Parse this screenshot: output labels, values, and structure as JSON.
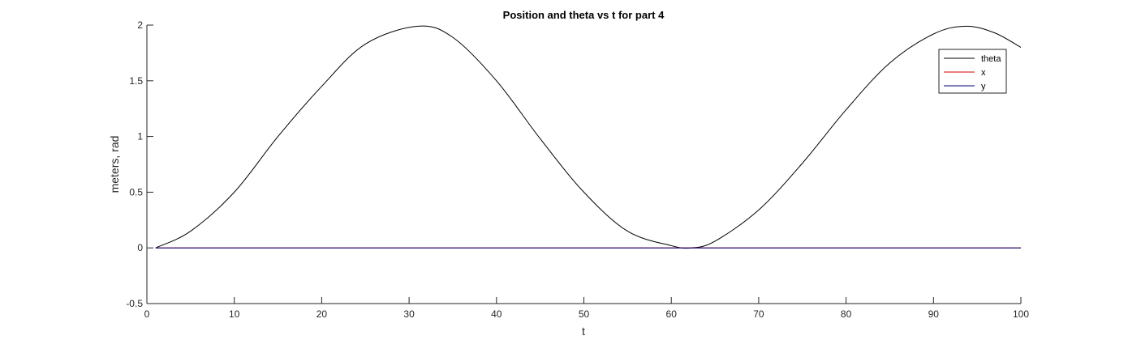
{
  "chart_data": {
    "type": "line",
    "title": "Position and theta vs t for part 4",
    "xlabel": "t",
    "ylabel": "meters, rad",
    "xlim": [
      0,
      100
    ],
    "ylim": [
      -0.5,
      2
    ],
    "xticks": [
      0,
      10,
      20,
      30,
      40,
      50,
      60,
      70,
      80,
      90,
      100
    ],
    "yticks": [
      -0.5,
      0,
      0.5,
      1,
      1.5,
      2
    ],
    "xtick_labels": [
      "0",
      "10",
      "20",
      "30",
      "40",
      "50",
      "60",
      "70",
      "80",
      "90",
      "100"
    ],
    "ytick_labels": [
      "-0.5",
      "0",
      "0.5",
      "1",
      "1.5",
      "2"
    ],
    "grid": false,
    "legend_position": "top-right",
    "x": [
      1,
      5,
      10,
      15,
      20,
      25,
      31,
      35,
      40,
      45,
      50,
      55,
      60,
      62.3,
      65,
      70,
      75,
      80,
      85,
      90,
      93.7,
      97,
      100
    ],
    "series": [
      {
        "name": "theta",
        "color": "#000000",
        "values": [
          0.0,
          0.15,
          0.5,
          1.0,
          1.45,
          1.83,
          1.99,
          1.89,
          1.5,
          0.98,
          0.5,
          0.15,
          0.02,
          0.0,
          0.06,
          0.34,
          0.76,
          1.24,
          1.66,
          1.92,
          1.99,
          1.93,
          1.8
        ]
      },
      {
        "name": "x",
        "color": "#d90000",
        "values": [
          0,
          0,
          0,
          0,
          0,
          0,
          0,
          0,
          0,
          0,
          0,
          0,
          0,
          0,
          0,
          0,
          0,
          0,
          0,
          0,
          0,
          0,
          0
        ]
      },
      {
        "name": "y",
        "color": "#00007f",
        "values": [
          0,
          0,
          0,
          0,
          0,
          0,
          0,
          0,
          0,
          0,
          0,
          0,
          0,
          0,
          0,
          0,
          0,
          0,
          0,
          0,
          0,
          0,
          0
        ]
      }
    ]
  }
}
